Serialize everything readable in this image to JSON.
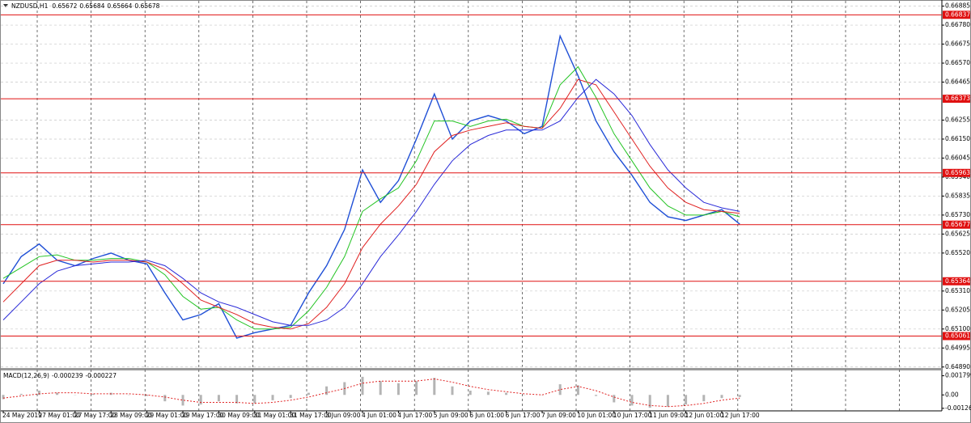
{
  "chart_data": [
    {
      "type": "line",
      "title": "NZDUSD,H1",
      "ohlc": [
        0.65672,
        0.65684,
        0.65664,
        0.65678
      ],
      "categories": [
        "24 May 2019",
        null,
        "27 May 01:00",
        null,
        "27 May 17:00",
        null,
        "28 May 09:00",
        null,
        "29 May 01:00",
        null,
        "29 May 17:00",
        null,
        "30 May 09:00",
        null,
        "31 May 01:00",
        null,
        "31 May 17:00",
        null,
        "3 Jun 09:00",
        null,
        "4 Jun 01:00",
        null,
        "4 Jun 17:00",
        null,
        "5 Jun 09:00",
        null,
        "6 Jun 01:00",
        null,
        "6 Jun 17:00",
        null,
        "7 Jun 09:00",
        null,
        "10 Jun 01:00",
        null,
        "10 Jun 17:00",
        null,
        "11 Jun 09:00",
        null,
        "12 Jun 01:00",
        null,
        "12 Jun 17:00",
        null
      ],
      "series": [
        {
          "color": "#1f4fd6",
          "width": 1.4,
          "values": [
            0.6535,
            0.655,
            0.6557,
            0.6548,
            0.6545,
            0.6549,
            0.6552,
            0.6548,
            0.6546,
            0.653,
            0.6515,
            0.6518,
            0.6524,
            0.6505,
            0.6508,
            0.651,
            0.6512,
            0.653,
            0.6545,
            0.6565,
            0.6598,
            0.658,
            0.6592,
            0.6615,
            0.664,
            0.6615,
            0.6625,
            0.6628,
            0.6625,
            0.6618,
            0.6622,
            0.6672,
            0.665,
            0.6625,
            0.6608,
            0.6595,
            0.658,
            0.6572,
            0.657,
            0.6573,
            0.6576,
            0.6568
          ]
        },
        {
          "color": "#22c322",
          "width": 1,
          "values": [
            0.6538,
            0.6544,
            0.655,
            0.6551,
            0.6548,
            0.6548,
            0.6549,
            0.6549,
            0.6547,
            0.654,
            0.6528,
            0.6521,
            0.6522,
            0.6515,
            0.651,
            0.651,
            0.6511,
            0.652,
            0.6533,
            0.655,
            0.6575,
            0.6582,
            0.6588,
            0.6603,
            0.6625,
            0.6625,
            0.6622,
            0.6625,
            0.6626,
            0.6622,
            0.6621,
            0.6645,
            0.6655,
            0.6638,
            0.6618,
            0.6603,
            0.6588,
            0.6578,
            0.6573,
            0.6573,
            0.6575,
            0.6572
          ]
        },
        {
          "color": "#e02020",
          "width": 1,
          "values": [
            0.6525,
            0.6535,
            0.6545,
            0.6548,
            0.6548,
            0.6547,
            0.6548,
            0.6548,
            0.6547,
            0.6543,
            0.6535,
            0.6526,
            0.6522,
            0.6518,
            0.6513,
            0.6511,
            0.651,
            0.6513,
            0.6522,
            0.6535,
            0.6555,
            0.6568,
            0.6578,
            0.659,
            0.6608,
            0.6617,
            0.662,
            0.6622,
            0.6624,
            0.6622,
            0.6621,
            0.6632,
            0.6648,
            0.6645,
            0.663,
            0.6615,
            0.66,
            0.6588,
            0.658,
            0.6576,
            0.6575,
            0.6574
          ]
        },
        {
          "color": "#2a2ad8",
          "width": 1,
          "values": [
            0.6515,
            0.6525,
            0.6535,
            0.6542,
            0.6545,
            0.6546,
            0.6547,
            0.6547,
            0.6548,
            0.6545,
            0.6538,
            0.653,
            0.6525,
            0.6522,
            0.6518,
            0.6514,
            0.6512,
            0.6512,
            0.6515,
            0.6522,
            0.6535,
            0.655,
            0.6562,
            0.6575,
            0.659,
            0.6603,
            0.6612,
            0.6617,
            0.662,
            0.662,
            0.662,
            0.6625,
            0.6638,
            0.6648,
            0.664,
            0.6628,
            0.6612,
            0.6598,
            0.6588,
            0.658,
            0.6577,
            0.6575
          ]
        }
      ],
      "levels": [
        0.66837,
        0.66373,
        0.65963,
        0.65677,
        0.65364,
        0.65061
      ],
      "level_color": "#e01010",
      "ylim": [
        0.6488,
        0.6691
      ],
      "yticks": [
        0.66885,
        {
          "value": 0.6678,
          "label": "0.66780"
        },
        0.66675,
        {
          "value": 0.6657,
          "label": "0.66570"
        },
        0.66465,
        0.66255,
        {
          "value": 0.6615,
          "label": "0.66150"
        },
        0.66045,
        {
          "value": 0.6594,
          "label": "0.65940"
        },
        0.65835,
        {
          "value": 0.6573,
          "label": "0.65730"
        },
        0.65625,
        {
          "value": 0.6552,
          "label": "0.65520"
        },
        {
          "value": 0.6531,
          "label": "0.65310"
        },
        0.65205,
        {
          "value": 0.651,
          "label": "0.65100"
        },
        0.64995,
        {
          "value": 0.6489,
          "label": "0.64890"
        }
      ],
      "grid": true
    },
    {
      "type": "macd",
      "title": "MACD(12,26,9)",
      "current": [
        -0.000239,
        -0.000227
      ],
      "values": [
        -0.0004,
        0.0001,
        0.0004,
        0.0002,
        0,
        0.0001,
        0.0002,
        0,
        -0.0001,
        -0.0006,
        -0.001,
        -0.0009,
        -0.0006,
        -0.0008,
        -0.0008,
        -0.0005,
        -0.0003,
        0.0002,
        0.0008,
        0.0012,
        0.0017,
        0.0013,
        0.0011,
        0.0013,
        0.0016,
        0.0008,
        0.0004,
        0.0003,
        0.0002,
        0,
        0,
        0.001,
        0.0009,
        -0.0001,
        -0.0007,
        -0.001,
        -0.0012,
        -0.0011,
        -0.0009,
        -0.0006,
        -0.0003,
        -0.0002
      ],
      "color": "#b4b4b4",
      "signal": [
        -0.0003,
        -0.0001,
        0.0001,
        0.0002,
        0.0002,
        0.0001,
        0.0001,
        0.0001,
        0,
        -0.0002,
        -0.0005,
        -0.0007,
        -0.0007,
        -0.0007,
        -0.0008,
        -0.0007,
        -0.0005,
        -0.0002,
        0.0002,
        0.0006,
        0.0011,
        0.0013,
        0.0013,
        0.0013,
        0.0015,
        0.0012,
        0.0008,
        0.0005,
        0.0003,
        0.0001,
        0,
        0.0005,
        0.0008,
        0.0004,
        -0.0002,
        -0.0007,
        -0.001,
        -0.0011,
        -0.001,
        -0.0008,
        -0.0005,
        -0.0003
      ],
      "signal_color": "#e02020",
      "ylim": [
        -0.0015,
        0.0023
      ],
      "yticks": [
        0.001799,
        {
          "value": 0,
          "label": "0.00"
        },
        -0.001262
      ]
    }
  ]
}
